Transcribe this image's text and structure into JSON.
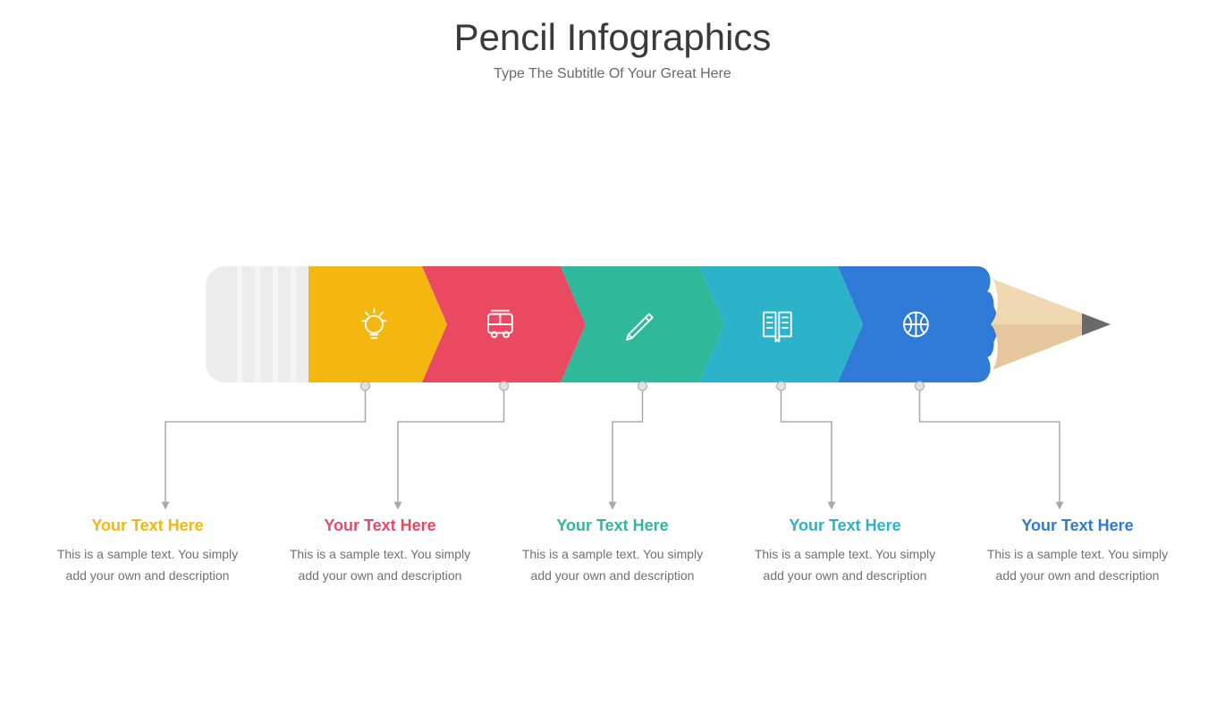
{
  "header": {
    "title": "Pencil Infographics",
    "subtitle": "Type The Subtitle Of Your Great Here",
    "title_color": "#3a3a3a",
    "subtitle_color": "#6a6a6a",
    "title_fontsize": 42,
    "subtitle_fontsize": 16
  },
  "background_color": "#ffffff",
  "pencil": {
    "eraser_bg": "#ececec",
    "eraser_stripe": "#f5f5f5",
    "tip_wood": "#e6c69c",
    "tip_wood_light": "#f0d8b2",
    "tip_lead": "#6a6a6a",
    "segment_width": 155,
    "segment_height": 130,
    "arrow_depth": 28
  },
  "segments": [
    {
      "color": "#f5b70f",
      "icon": "bulb-icon",
      "heading": "Your Text Here",
      "body": "This is a sample text. You simply add your own and description"
    },
    {
      "color": "#e94a62",
      "icon": "bus-icon",
      "heading": "Your Text Here",
      "body": "This is a sample text. You simply add your own and description"
    },
    {
      "color": "#2fb99a",
      "icon": "pen-icon",
      "heading": "Your Text Here",
      "body": "This is a sample text. You simply add your own and description"
    },
    {
      "color": "#2cb3c9",
      "icon": "book-icon",
      "heading": "Your Text Here",
      "body": "This is a sample text. You simply add your own and description"
    },
    {
      "color": "#2f7ad6",
      "icon": "basketball-icon",
      "heading": "Your Text Here",
      "body": "This is a sample text. You simply add your own and description"
    }
  ],
  "connector": {
    "color": "#a9a9a9",
    "dot_fill": "#e2e2e2",
    "width": 1.5
  },
  "caption_style": {
    "title_fontsize": 18,
    "body_fontsize": 14,
    "body_color": "#707070"
  }
}
